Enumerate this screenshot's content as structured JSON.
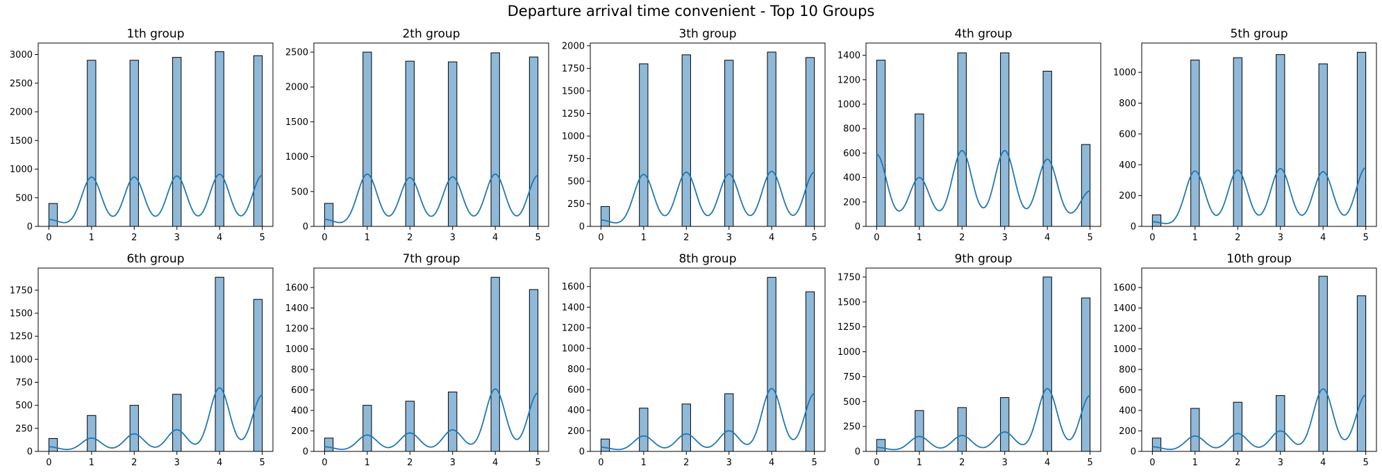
{
  "figure": {
    "suptitle": "Departure arrival time convenient - Top 10 Groups"
  },
  "colors": {
    "bar_fill": "#8fb9d9",
    "bar_edge": "#000000",
    "kde_line": "#1f77b4",
    "axis": "#000000"
  },
  "chart_data": [
    {
      "type": "bar",
      "title": "1th group",
      "categories": [
        0,
        1,
        2,
        3,
        4,
        5
      ],
      "values": [
        400,
        2900,
        2900,
        2950,
        3050,
        2980
      ],
      "ylim": [
        0,
        3200
      ],
      "yticks": [
        0,
        500,
        1000,
        1500,
        2000,
        2500,
        3000
      ],
      "kde_peaks": [
        120,
        860,
        860,
        880,
        910,
        890
      ],
      "xlabel": "",
      "ylabel": ""
    },
    {
      "type": "bar",
      "title": "2th group",
      "categories": [
        0,
        1,
        2,
        3,
        4,
        5
      ],
      "values": [
        330,
        2500,
        2370,
        2360,
        2490,
        2430
      ],
      "ylim": [
        0,
        2630
      ],
      "yticks": [
        0,
        500,
        1000,
        1500,
        2000,
        2500
      ],
      "kde_peaks": [
        100,
        750,
        700,
        710,
        750,
        730
      ],
      "xlabel": "",
      "ylabel": ""
    },
    {
      "type": "bar",
      "title": "3th group",
      "categories": [
        0,
        1,
        2,
        3,
        4,
        5
      ],
      "values": [
        220,
        1800,
        1900,
        1840,
        1930,
        1870
      ],
      "ylim": [
        0,
        2030
      ],
      "yticks": [
        0,
        250,
        500,
        750,
        1000,
        1250,
        1500,
        1750,
        2000
      ],
      "kde_peaks": [
        70,
        575,
        600,
        580,
        610,
        600
      ],
      "xlabel": "",
      "ylabel": ""
    },
    {
      "type": "bar",
      "title": "4th group",
      "categories": [
        0,
        1,
        2,
        3,
        4,
        5
      ],
      "values": [
        1360,
        920,
        1420,
        1420,
        1270,
        670
      ],
      "ylim": [
        0,
        1500
      ],
      "yticks": [
        0,
        200,
        400,
        600,
        800,
        1000,
        1200,
        1400
      ],
      "kde_peaks": [
        590,
        400,
        620,
        620,
        550,
        290
      ],
      "xlabel": "",
      "ylabel": ""
    },
    {
      "type": "bar",
      "title": "5th group",
      "categories": [
        0,
        1,
        2,
        3,
        4,
        5
      ],
      "values": [
        75,
        1080,
        1095,
        1115,
        1055,
        1130
      ],
      "ylim": [
        0,
        1190
      ],
      "yticks": [
        0,
        200,
        400,
        600,
        800,
        1000
      ],
      "kde_peaks": [
        30,
        360,
        365,
        375,
        355,
        380
      ],
      "xlabel": "",
      "ylabel": ""
    },
    {
      "type": "bar",
      "title": "6th group",
      "categories": [
        0,
        1,
        2,
        3,
        4,
        5
      ],
      "values": [
        140,
        390,
        500,
        620,
        1890,
        1650
      ],
      "ylim": [
        0,
        1990
      ],
      "yticks": [
        0,
        250,
        500,
        750,
        1000,
        1250,
        1500,
        1750
      ],
      "kde_peaks": [
        50,
        145,
        190,
        235,
        690,
        610
      ],
      "xlabel": "",
      "ylabel": ""
    },
    {
      "type": "bar",
      "title": "7th group",
      "categories": [
        0,
        1,
        2,
        3,
        4,
        5
      ],
      "values": [
        130,
        450,
        490,
        580,
        1700,
        1580
      ],
      "ylim": [
        0,
        1790
      ],
      "yticks": [
        0,
        200,
        400,
        600,
        800,
        1000,
        1200,
        1400,
        1600
      ],
      "kde_peaks": [
        45,
        160,
        180,
        210,
        610,
        570
      ],
      "xlabel": "",
      "ylabel": ""
    },
    {
      "type": "bar",
      "title": "8th group",
      "categories": [
        0,
        1,
        2,
        3,
        4,
        5
      ],
      "values": [
        120,
        420,
        460,
        560,
        1690,
        1550
      ],
      "ylim": [
        0,
        1780
      ],
      "yticks": [
        0,
        200,
        400,
        600,
        800,
        1000,
        1200,
        1400,
        1600
      ],
      "kde_peaks": [
        40,
        150,
        170,
        200,
        610,
        560
      ],
      "xlabel": "",
      "ylabel": ""
    },
    {
      "type": "bar",
      "title": "9th group",
      "categories": [
        0,
        1,
        2,
        3,
        4,
        5
      ],
      "values": [
        120,
        410,
        440,
        540,
        1750,
        1540
      ],
      "ylim": [
        0,
        1840
      ],
      "yticks": [
        0,
        250,
        500,
        750,
        1000,
        1250,
        1500,
        1750
      ],
      "kde_peaks": [
        40,
        150,
        160,
        195,
        630,
        560
      ],
      "xlabel": "",
      "ylabel": ""
    },
    {
      "type": "bar",
      "title": "10th group",
      "categories": [
        0,
        1,
        2,
        3,
        4,
        5
      ],
      "values": [
        130,
        420,
        480,
        545,
        1710,
        1520
      ],
      "ylim": [
        0,
        1790
      ],
      "yticks": [
        0,
        200,
        400,
        600,
        800,
        1000,
        1200,
        1400,
        1600
      ],
      "kde_peaks": [
        45,
        150,
        175,
        200,
        610,
        550
      ],
      "xlabel": "",
      "ylabel": ""
    }
  ]
}
